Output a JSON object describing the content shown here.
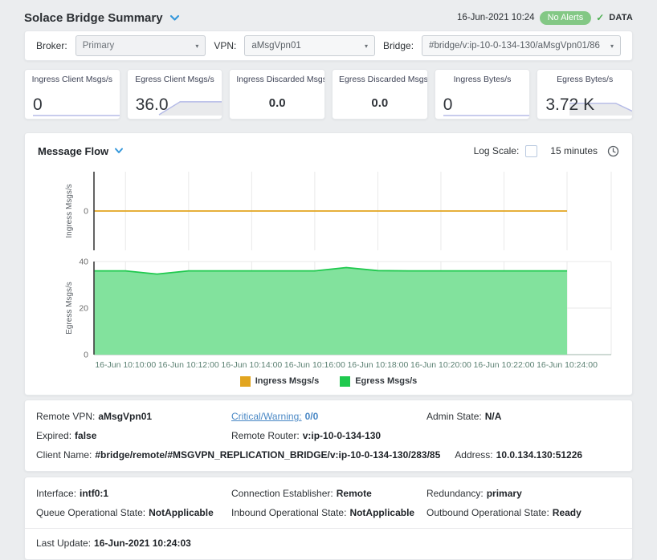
{
  "header": {
    "title": "Solace Bridge Summary",
    "timestamp": "16-Jun-2021 10:24",
    "alert_badge": "No Alerts",
    "check_mark": "✓",
    "data_indicator": "DATA"
  },
  "filter_bar": {
    "broker": {
      "label": "Broker:",
      "value": "Primary"
    },
    "vpn": {
      "label": "VPN:",
      "value": "aMsgVpn01"
    },
    "bridge": {
      "label": "Bridge:",
      "value": "#bridge/v:ip-10-0-134-130/aMsgVpn01/86"
    },
    "caret": "▾"
  },
  "metrics": {
    "cards": [
      {
        "label": "Ingress Client Msgs/s",
        "value": "0",
        "spark": [
          0,
          0,
          0,
          0,
          0,
          0,
          0,
          0,
          0,
          0
        ],
        "spark_fill": false
      },
      {
        "label": "Egress Client Msgs/s",
        "value": "36.0",
        "spark": [
          0,
          62,
          62,
          62,
          61,
          62,
          62,
          62,
          100,
          62,
          62,
          62
        ],
        "spark_fill": true
      },
      {
        "label": "Ingress Discarded Msgs",
        "value": "0.0"
      },
      {
        "label": "Egress Discarded Msgs",
        "value": "0.0"
      },
      {
        "label": "Ingress Bytes/s",
        "value": "0",
        "spark": [
          0,
          0,
          0,
          0,
          0,
          0,
          0,
          0,
          0,
          0
        ],
        "spark_fill": false
      },
      {
        "label": "Egress Bytes/s",
        "value": "3.72 K",
        "spark": [
          55,
          55,
          55,
          2,
          55,
          55,
          100,
          40,
          40,
          40,
          40
        ],
        "spark_fill": true
      }
    ],
    "spark_line_color": "#b5bbe7",
    "spark_fill_color": "#e9eaec"
  },
  "flow_panel": {
    "title": "Message Flow",
    "log_scale_label": "Log Scale:",
    "log_scale_checked": false,
    "time_range": "15 minutes"
  },
  "chart_data": {
    "type": "area",
    "title": "Message Flow",
    "x_tick_labels": [
      "16-Jun 10:10:00",
      "16-Jun 10:12:00",
      "16-Jun 10:14:00",
      "16-Jun 10:16:00",
      "16-Jun 10:18:00",
      "16-Jun 10:20:00",
      "16-Jun 10:22:00",
      "16-Jun 10:24:00"
    ],
    "x_tick_minutes": [
      1,
      3,
      5,
      7,
      9,
      11,
      13,
      15
    ],
    "x_domain_minutes": [
      0,
      16.4
    ],
    "data_end_minute": 15,
    "grid": true,
    "legend_position": "bottom",
    "panels": [
      {
        "ylabel": "Ingress  Msgs/s",
        "ylim": [
          -40,
          40
        ],
        "yticks": [
          0
        ]
      },
      {
        "ylabel": "Egress  Msgs/s",
        "ylim": [
          0,
          40
        ],
        "yticks": [
          0,
          20,
          40
        ]
      }
    ],
    "series": [
      {
        "name": "Ingress Msgs/s",
        "panel": 0,
        "color": "#E2A51F",
        "values": [
          0,
          0,
          0,
          0,
          0,
          0,
          0,
          0,
          0,
          0,
          0,
          0,
          0,
          0,
          0,
          0
        ]
      },
      {
        "name": "Egress Msgs/s",
        "panel": 1,
        "color": "#1FC94E",
        "fill": "#82E29D",
        "values": [
          36,
          36,
          34.6,
          36,
          36,
          36,
          36,
          36,
          37.4,
          36.1,
          36,
          36,
          36,
          36,
          36,
          36
        ]
      }
    ],
    "colors": {
      "grid": "#e9e9e9",
      "axis": "#3c3c3c",
      "x_label": "#5b8072",
      "y_tick": "#6b6b6b",
      "baseline": "#9db4aa"
    }
  },
  "details": {
    "bridge_info": {
      "remote_vpn": {
        "label": "Remote VPN:",
        "value": "aMsgVpn01"
      },
      "critical_warning": {
        "label": "Critical/Warning:",
        "value": "0/0"
      },
      "admin_state": {
        "label": "Admin State:",
        "value": "N/A"
      },
      "expired": {
        "label": "Expired:",
        "value": "false"
      },
      "remote_router": {
        "label": "Remote Router:",
        "value": "v:ip-10-0-134-130"
      },
      "client_name": {
        "label": "Client Name:",
        "value": "#bridge/remote/#MSGVPN_REPLICATION_BRIDGE/v:ip-10-0-134-130/283/85"
      },
      "address": {
        "label": "Address:",
        "value": "10.0.134.130:51226"
      }
    },
    "state_info": {
      "interface": {
        "label": "Interface:",
        "value": "intf0:1"
      },
      "connection_establisher": {
        "label": "Connection Establisher:",
        "value": "Remote"
      },
      "redundancy": {
        "label": "Redundancy:",
        "value": "primary"
      },
      "queue_op_state": {
        "label": "Queue Operational State:",
        "value": "NotApplicable"
      },
      "inbound_op_state": {
        "label": "Inbound Operational State:",
        "value": "NotApplicable"
      },
      "outbound_op_state": {
        "label": "Outbound Operational State:",
        "value": "Ready"
      },
      "last_update": {
        "label": "Last Update:",
        "value": "16-Jun-2021 10:24:03"
      }
    }
  }
}
